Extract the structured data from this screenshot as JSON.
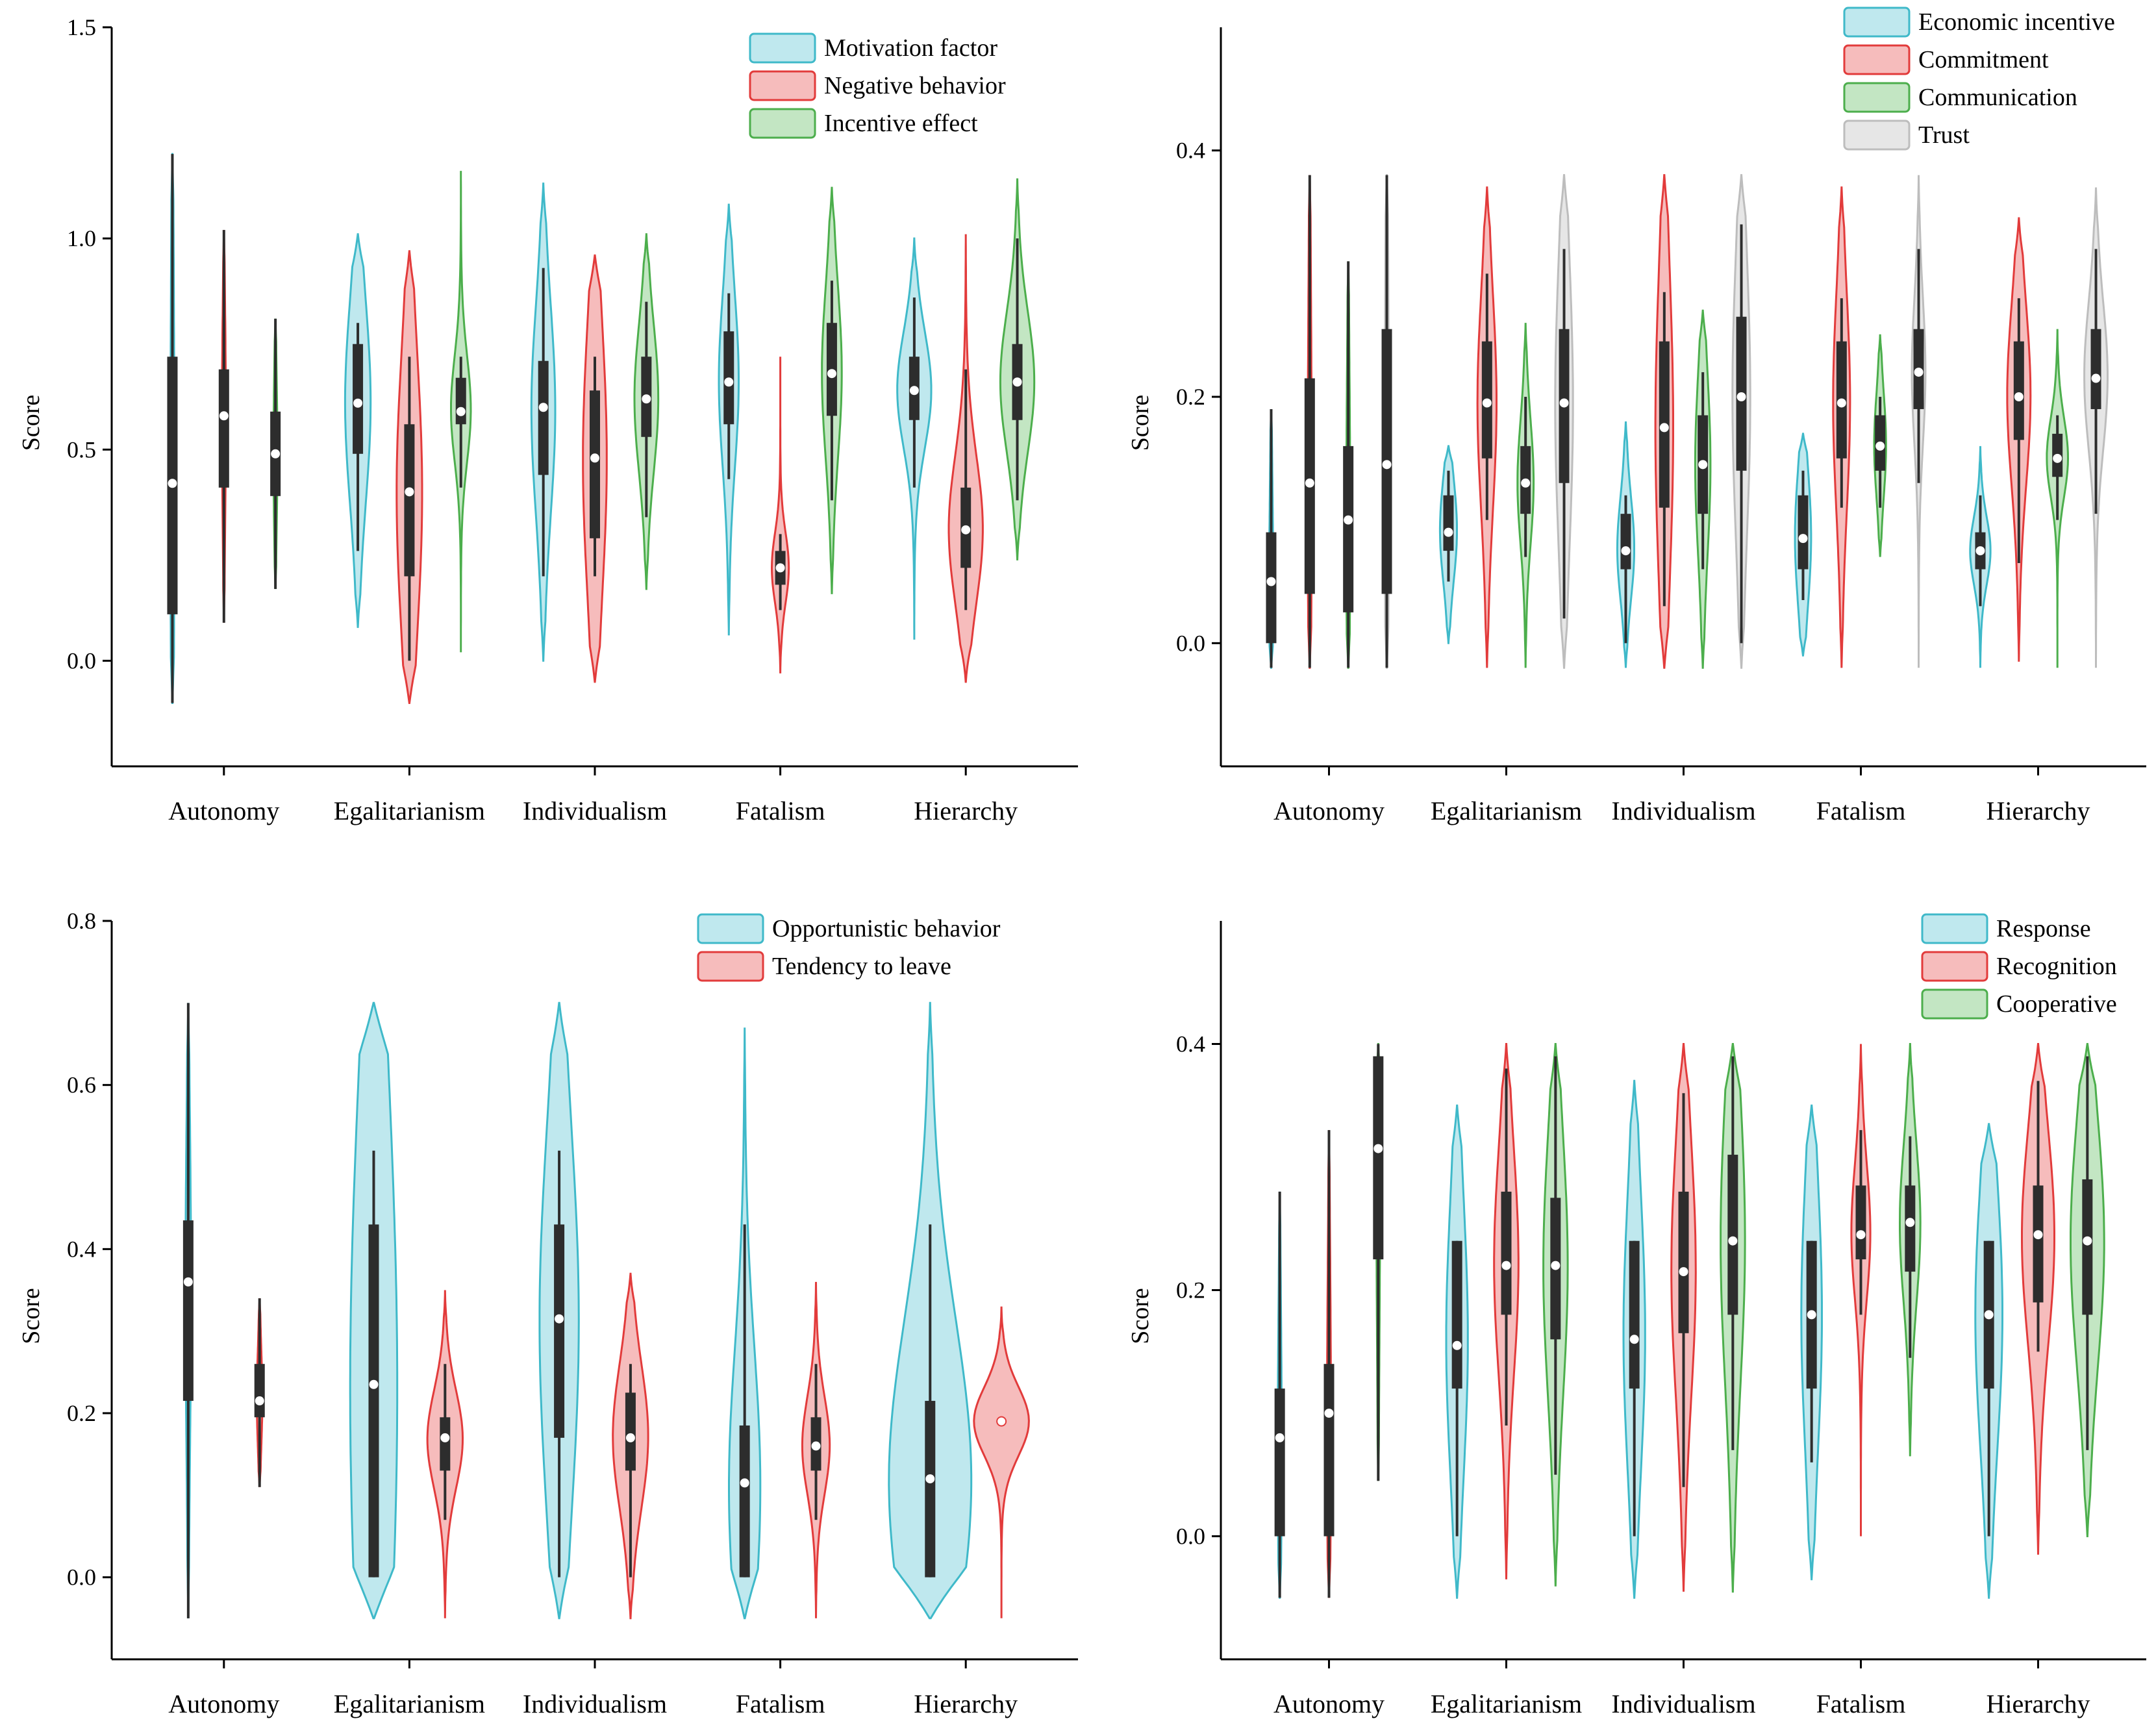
{
  "colors": {
    "blue": {
      "stroke": "#3fb9c9",
      "fill": "#bfe8ee"
    },
    "red": {
      "stroke": "#e23b3b",
      "fill": "#f6bcbc"
    },
    "green": {
      "stroke": "#4cae4c",
      "fill": "#c3e6c3"
    },
    "gray": {
      "stroke": "#bdbdbd",
      "fill": "#e6e6e6"
    },
    "box": "#2d2d2d",
    "median": "#ffffff"
  },
  "chart_data": [
    {
      "id": "top-left",
      "type": "violin",
      "ylabel": "Score",
      "ylim": [
        -0.25,
        1.5
      ],
      "yticks": [
        0.0,
        0.5,
        1.0,
        1.5
      ],
      "ytick_labels": [
        "0.0",
        "0.5",
        "1.0",
        "1.5"
      ],
      "categories": [
        "Autonomy",
        "Egalitarianism",
        "Individualism",
        "Fatalism",
        "Hierarchy"
      ],
      "legend_position": "top-right",
      "series": [
        {
          "name": "Motivation factor",
          "color": "blue",
          "violins": [
            {
              "min": -0.1,
              "max": 1.2,
              "q1": 0.11,
              "q3": 0.72,
              "median": 0.42,
              "wlo": -0.1,
              "whi": 1.2,
              "width": 0.06
            },
            {
              "min": 0.08,
              "max": 1.01,
              "q1": 0.49,
              "q3": 0.75,
              "median": 0.61,
              "wlo": 0.26,
              "whi": 0.8,
              "width": 0.45
            },
            {
              "min": 0.0,
              "max": 1.13,
              "q1": 0.44,
              "q3": 0.71,
              "median": 0.6,
              "wlo": 0.2,
              "whi": 0.93,
              "width": 0.42
            },
            {
              "min": 0.06,
              "max": 1.08,
              "q1": 0.56,
              "q3": 0.78,
              "median": 0.66,
              "wlo": 0.43,
              "whi": 0.87,
              "width": 0.35
            },
            {
              "min": 0.05,
              "max": 1.0,
              "q1": 0.57,
              "q3": 0.72,
              "median": 0.64,
              "wlo": 0.41,
              "whi": 0.86,
              "width": 0.6
            }
          ]
        },
        {
          "name": "Negative behavior",
          "color": "red",
          "violins": [
            {
              "min": 0.09,
              "max": 1.02,
              "q1": 0.41,
              "q3": 0.69,
              "median": 0.58,
              "wlo": 0.09,
              "whi": 1.02,
              "width": 0.06
            },
            {
              "min": -0.1,
              "max": 0.97,
              "q1": 0.2,
              "q3": 0.56,
              "median": 0.4,
              "wlo": 0.0,
              "whi": 0.72,
              "width": 0.45
            },
            {
              "min": -0.05,
              "max": 0.96,
              "q1": 0.29,
              "q3": 0.64,
              "median": 0.48,
              "wlo": 0.2,
              "whi": 0.72,
              "width": 0.42
            },
            {
              "min": -0.03,
              "max": 0.72,
              "q1": 0.18,
              "q3": 0.26,
              "median": 0.22,
              "wlo": 0.12,
              "whi": 0.3,
              "width": 0.3
            },
            {
              "min": -0.05,
              "max": 1.01,
              "q1": 0.22,
              "q3": 0.41,
              "median": 0.31,
              "wlo": 0.12,
              "whi": 0.69,
              "width": 0.6
            }
          ]
        },
        {
          "name": "Incentive effect",
          "color": "green",
          "violins": [
            {
              "min": 0.17,
              "max": 0.81,
              "q1": 0.39,
              "q3": 0.59,
              "median": 0.49,
              "wlo": 0.17,
              "whi": 0.81,
              "width": 0.06
            },
            {
              "min": 0.02,
              "max": 1.16,
              "q1": 0.56,
              "q3": 0.67,
              "median": 0.59,
              "wlo": 0.41,
              "whi": 0.72,
              "width": 0.35
            },
            {
              "min": 0.17,
              "max": 1.01,
              "q1": 0.53,
              "q3": 0.72,
              "median": 0.62,
              "wlo": 0.34,
              "whi": 0.85,
              "width": 0.42
            },
            {
              "min": 0.16,
              "max": 1.12,
              "q1": 0.58,
              "q3": 0.8,
              "median": 0.68,
              "wlo": 0.38,
              "whi": 0.9,
              "width": 0.35
            },
            {
              "min": 0.24,
              "max": 1.14,
              "q1": 0.57,
              "q3": 0.75,
              "median": 0.66,
              "wlo": 0.38,
              "whi": 1.0,
              "width": 0.6
            }
          ]
        }
      ]
    },
    {
      "id": "top-right",
      "type": "violin",
      "ylabel": "Score",
      "ylim": [
        -0.1,
        0.5
      ],
      "yticks": [
        0.0,
        0.2,
        0.4
      ],
      "ytick_labels": [
        "0.0",
        "0.2",
        "0.4"
      ],
      "categories": [
        "Autonomy",
        "Egalitarianism",
        "Individualism",
        "Fatalism",
        "Hierarchy"
      ],
      "legend_position": "top-right",
      "series": [
        {
          "name": "Economic incentive",
          "color": "blue",
          "violins": [
            {
              "min": -0.02,
              "max": 0.19,
              "q1": 0.0,
              "q3": 0.09,
              "median": 0.05,
              "wlo": -0.02,
              "whi": 0.19,
              "width": 0.05
            },
            {
              "min": 0.0,
              "max": 0.16,
              "q1": 0.075,
              "q3": 0.12,
              "median": 0.09,
              "wlo": 0.05,
              "whi": 0.14,
              "width": 0.4
            },
            {
              "min": -0.02,
              "max": 0.18,
              "q1": 0.06,
              "q3": 0.105,
              "median": 0.075,
              "wlo": 0.0,
              "whi": 0.12,
              "width": 0.4
            },
            {
              "min": -0.01,
              "max": 0.17,
              "q1": 0.06,
              "q3": 0.12,
              "median": 0.085,
              "wlo": 0.035,
              "whi": 0.14,
              "width": 0.38
            },
            {
              "min": -0.02,
              "max": 0.16,
              "q1": 0.06,
              "q3": 0.09,
              "median": 0.075,
              "wlo": 0.03,
              "whi": 0.12,
              "width": 0.48
            }
          ]
        },
        {
          "name": "Commitment",
          "color": "red",
          "violins": [
            {
              "min": -0.02,
              "max": 0.38,
              "q1": 0.04,
              "q3": 0.215,
              "median": 0.13,
              "wlo": -0.02,
              "whi": 0.38,
              "width": 0.05
            },
            {
              "min": -0.02,
              "max": 0.37,
              "q1": 0.15,
              "q3": 0.245,
              "median": 0.195,
              "wlo": 0.1,
              "whi": 0.3,
              "width": 0.45
            },
            {
              "min": -0.02,
              "max": 0.38,
              "q1": 0.11,
              "q3": 0.245,
              "median": 0.175,
              "wlo": 0.03,
              "whi": 0.285,
              "width": 0.42
            },
            {
              "min": -0.02,
              "max": 0.37,
              "q1": 0.15,
              "q3": 0.245,
              "median": 0.195,
              "wlo": 0.11,
              "whi": 0.28,
              "width": 0.4
            },
            {
              "min": -0.015,
              "max": 0.345,
              "q1": 0.165,
              "q3": 0.245,
              "median": 0.2,
              "wlo": 0.065,
              "whi": 0.28,
              "width": 0.55
            }
          ]
        },
        {
          "name": "Communication",
          "color": "green",
          "violins": [
            {
              "min": -0.02,
              "max": 0.31,
              "q1": 0.025,
              "q3": 0.16,
              "median": 0.1,
              "wlo": -0.02,
              "whi": 0.31,
              "width": 0.05
            },
            {
              "min": -0.02,
              "max": 0.26,
              "q1": 0.105,
              "q3": 0.16,
              "median": 0.13,
              "wlo": 0.07,
              "whi": 0.2,
              "width": 0.38
            },
            {
              "min": -0.02,
              "max": 0.27,
              "q1": 0.105,
              "q3": 0.185,
              "median": 0.145,
              "wlo": 0.06,
              "whi": 0.22,
              "width": 0.36
            },
            {
              "min": 0.07,
              "max": 0.25,
              "q1": 0.14,
              "q3": 0.185,
              "median": 0.16,
              "wlo": 0.11,
              "whi": 0.2,
              "width": 0.28
            },
            {
              "min": -0.02,
              "max": 0.255,
              "q1": 0.135,
              "q3": 0.17,
              "median": 0.15,
              "wlo": 0.1,
              "whi": 0.185,
              "width": 0.5
            }
          ]
        },
        {
          "name": "Trust",
          "color": "gray",
          "violins": [
            {
              "min": -0.02,
              "max": 0.38,
              "q1": 0.04,
              "q3": 0.255,
              "median": 0.145,
              "wlo": -0.02,
              "whi": 0.38,
              "width": 0.05
            },
            {
              "min": -0.02,
              "max": 0.38,
              "q1": 0.13,
              "q3": 0.255,
              "median": 0.195,
              "wlo": 0.02,
              "whi": 0.32,
              "width": 0.42
            },
            {
              "min": -0.02,
              "max": 0.38,
              "q1": 0.14,
              "q3": 0.265,
              "median": 0.2,
              "wlo": 0.0,
              "whi": 0.34,
              "width": 0.42
            },
            {
              "min": -0.02,
              "max": 0.38,
              "q1": 0.19,
              "q3": 0.255,
              "median": 0.22,
              "wlo": 0.13,
              "whi": 0.32,
              "width": 0.32
            },
            {
              "min": -0.02,
              "max": 0.37,
              "q1": 0.19,
              "q3": 0.255,
              "median": 0.215,
              "wlo": 0.105,
              "whi": 0.32,
              "width": 0.55
            }
          ]
        }
      ]
    },
    {
      "id": "bottom-left",
      "type": "violin",
      "ylabel": "Score",
      "ylim": [
        -0.1,
        0.8
      ],
      "yticks": [
        0.0,
        0.2,
        0.4,
        0.6,
        0.8
      ],
      "ytick_labels": [
        "0.0",
        "0.2",
        "0.4",
        "0.6",
        "0.8"
      ],
      "categories": [
        "Autonomy",
        "Egalitarianism",
        "Individualism",
        "Fatalism",
        "Hierarchy"
      ],
      "legend_position": "top-right",
      "series": [
        {
          "name": "Opportunistic behavior",
          "color": "blue",
          "violins": [
            {
              "min": -0.05,
              "max": 0.7,
              "q1": 0.215,
              "q3": 0.435,
              "median": 0.36,
              "wlo": -0.05,
              "whi": 0.7,
              "width": 0.07
            },
            {
              "min": -0.05,
              "max": 0.7,
              "q1": 0.0,
              "q3": 0.43,
              "median": 0.235,
              "wlo": 0.0,
              "whi": 0.52,
              "width": 0.6
            },
            {
              "min": -0.05,
              "max": 0.7,
              "q1": 0.17,
              "q3": 0.43,
              "median": 0.315,
              "wlo": 0.0,
              "whi": 0.52,
              "width": 0.5
            },
            {
              "min": -0.05,
              "max": 0.67,
              "q1": 0.0,
              "q3": 0.185,
              "median": 0.115,
              "wlo": 0.0,
              "whi": 0.43,
              "width": 0.4
            },
            {
              "min": -0.05,
              "max": 0.7,
              "q1": 0.0,
              "q3": 0.215,
              "median": 0.12,
              "wlo": 0.0,
              "whi": 0.43,
              "width": 1.05
            }
          ]
        },
        {
          "name": "Tendency to leave",
          "color": "red",
          "violins": [
            {
              "min": 0.11,
              "max": 0.34,
              "q1": 0.195,
              "q3": 0.26,
              "median": 0.215,
              "wlo": 0.11,
              "whi": 0.34,
              "width": 0.07
            },
            {
              "min": -0.05,
              "max": 0.35,
              "q1": 0.13,
              "q3": 0.195,
              "median": 0.17,
              "wlo": 0.07,
              "whi": 0.26,
              "width": 0.45
            },
            {
              "min": -0.05,
              "max": 0.37,
              "q1": 0.13,
              "q3": 0.225,
              "median": 0.17,
              "wlo": 0.0,
              "whi": 0.26,
              "width": 0.45
            },
            {
              "min": -0.05,
              "max": 0.36,
              "q1": 0.13,
              "q3": 0.195,
              "median": 0.16,
              "wlo": 0.07,
              "whi": 0.26,
              "width": 0.35
            },
            {
              "min": -0.05,
              "max": 0.33,
              "q1": 0.19,
              "q3": 0.19,
              "median": 0.19,
              "wlo": 0.19,
              "whi": 0.19,
              "width": 0.7,
              "nobox": true
            }
          ]
        }
      ]
    },
    {
      "id": "bottom-right",
      "type": "violin",
      "ylabel": "Score",
      "ylim": [
        -0.1,
        0.5
      ],
      "yticks": [
        0.0,
        0.2,
        0.4
      ],
      "ytick_labels": [
        "0.0",
        "0.2",
        "0.4"
      ],
      "categories": [
        "Autonomy",
        "Egalitarianism",
        "Individualism",
        "Fatalism",
        "Hierarchy"
      ],
      "legend_position": "top-right",
      "series": [
        {
          "name": "Response",
          "color": "blue",
          "violins": [
            {
              "min": -0.05,
              "max": 0.28,
              "q1": 0.0,
              "q3": 0.12,
              "median": 0.08,
              "wlo": -0.05,
              "whi": 0.28,
              "width": 0.05
            },
            {
              "min": -0.05,
              "max": 0.35,
              "q1": 0.12,
              "q3": 0.24,
              "median": 0.155,
              "wlo": 0.0,
              "whi": 0.24,
              "width": 0.4
            },
            {
              "min": -0.05,
              "max": 0.37,
              "q1": 0.12,
              "q3": 0.24,
              "median": 0.16,
              "wlo": 0.0,
              "whi": 0.24,
              "width": 0.4
            },
            {
              "min": -0.035,
              "max": 0.35,
              "q1": 0.12,
              "q3": 0.24,
              "median": 0.18,
              "wlo": 0.06,
              "whi": 0.24,
              "width": 0.38
            },
            {
              "min": -0.05,
              "max": 0.335,
              "q1": 0.12,
              "q3": 0.24,
              "median": 0.18,
              "wlo": 0.0,
              "whi": 0.24,
              "width": 0.5
            }
          ]
        },
        {
          "name": "Recognition",
          "color": "red",
          "violins": [
            {
              "min": -0.05,
              "max": 0.33,
              "q1": 0.0,
              "q3": 0.14,
              "median": 0.1,
              "wlo": -0.05,
              "whi": 0.33,
              "width": 0.05
            },
            {
              "min": -0.035,
              "max": 0.4,
              "q1": 0.18,
              "q3": 0.28,
              "median": 0.22,
              "wlo": 0.09,
              "whi": 0.38,
              "width": 0.45
            },
            {
              "min": -0.045,
              "max": 0.4,
              "q1": 0.165,
              "q3": 0.28,
              "median": 0.215,
              "wlo": 0.04,
              "whi": 0.36,
              "width": 0.45
            },
            {
              "min": 0.0,
              "max": 0.4,
              "q1": 0.225,
              "q3": 0.285,
              "median": 0.245,
              "wlo": 0.18,
              "whi": 0.33,
              "width": 0.35
            },
            {
              "min": -0.015,
              "max": 0.4,
              "q1": 0.19,
              "q3": 0.285,
              "median": 0.245,
              "wlo": 0.15,
              "whi": 0.37,
              "width": 0.6
            }
          ]
        },
        {
          "name": "Cooperative",
          "color": "green",
          "violins": [
            {
              "min": 0.045,
              "max": 0.4,
              "q1": 0.225,
              "q3": 0.39,
              "median": 0.315,
              "wlo": 0.045,
              "whi": 0.4,
              "width": 0.05
            },
            {
              "min": -0.04,
              "max": 0.4,
              "q1": 0.16,
              "q3": 0.275,
              "median": 0.22,
              "wlo": 0.05,
              "whi": 0.39,
              "width": 0.45
            },
            {
              "min": -0.045,
              "max": 0.4,
              "q1": 0.18,
              "q3": 0.31,
              "median": 0.24,
              "wlo": 0.07,
              "whi": 0.39,
              "width": 0.45
            },
            {
              "min": 0.065,
              "max": 0.4,
              "q1": 0.215,
              "q3": 0.285,
              "median": 0.255,
              "wlo": 0.145,
              "whi": 0.325,
              "width": 0.38
            },
            {
              "min": 0.0,
              "max": 0.4,
              "q1": 0.18,
              "q3": 0.29,
              "median": 0.24,
              "wlo": 0.07,
              "whi": 0.39,
              "width": 0.62
            }
          ]
        }
      ]
    }
  ]
}
